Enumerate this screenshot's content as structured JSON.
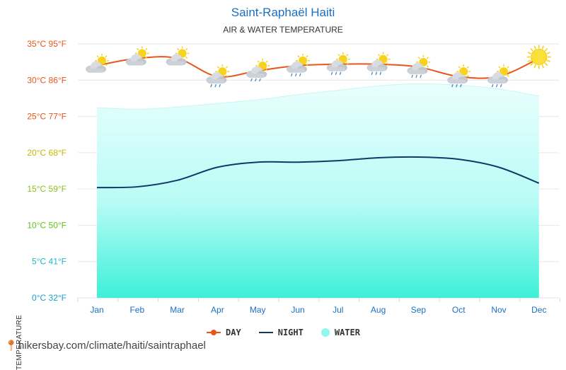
{
  "title": "Saint-Raphaël Haiti",
  "subtitle": "AIR & WATER TEMPERATURE",
  "source": "hikersbay.com/climate/haiti/saintraphael",
  "colors": {
    "day": "#e8561a",
    "night": "#0d3b66",
    "water": "#8ff7f0",
    "title": "#1b6fc0"
  },
  "legend": {
    "day": "DAY",
    "night": "NIGHT",
    "water": "WATER"
  },
  "chart_data": {
    "type": "line",
    "title": "Saint-Raphaël Haiti",
    "subtitle": "AIR & WATER TEMPERATURE",
    "ylabel": "TEMPERATURE",
    "xlabel": "",
    "categories": [
      "Jan",
      "Feb",
      "Mar",
      "Apr",
      "May",
      "Jun",
      "Jul",
      "Aug",
      "Sep",
      "Oct",
      "Nov",
      "Dec"
    ],
    "ylim": [
      0,
      35
    ],
    "yticks": [
      {
        "value": 35,
        "label": "35°C 95°F",
        "color": "#e8561a"
      },
      {
        "value": 30,
        "label": "30°C 86°F",
        "color": "#e8561a"
      },
      {
        "value": 25,
        "label": "25°C 77°F",
        "color": "#e8561a"
      },
      {
        "value": 20,
        "label": "20°C 68°F",
        "color": "#c8b800"
      },
      {
        "value": 15,
        "label": "15°C 59°F",
        "color": "#8fbf1a"
      },
      {
        "value": 10,
        "label": "10°C 50°F",
        "color": "#5fc21a"
      },
      {
        "value": 5,
        "label": "5°C 41°F",
        "color": "#1ab8c8"
      },
      {
        "value": 0,
        "label": "0°C 32°F",
        "color": "#1aa0c8"
      }
    ],
    "series": [
      {
        "name": "DAY",
        "type": "line",
        "values": [
          32.0,
          33.0,
          33.0,
          30.5,
          31.3,
          32.0,
          32.2,
          32.2,
          31.8,
          30.5,
          30.5,
          33.0
        ]
      },
      {
        "name": "NIGHT",
        "type": "line",
        "values": [
          15.2,
          15.3,
          16.2,
          18.0,
          18.7,
          18.7,
          18.9,
          19.3,
          19.4,
          19.1,
          18.0,
          15.8
        ]
      },
      {
        "name": "WATER",
        "type": "area",
        "values": [
          26.2,
          26.0,
          26.3,
          26.8,
          27.3,
          28.0,
          28.6,
          29.2,
          29.5,
          29.3,
          28.8,
          27.8
        ]
      }
    ],
    "weather_icons": [
      "partly-cloudy-icon",
      "partly-cloudy-icon",
      "partly-cloudy-icon",
      "rain-cloud-icon",
      "rain-cloud-icon",
      "rain-cloud-icon",
      "rain-cloud-icon",
      "rain-cloud-icon",
      "rain-cloud-icon",
      "rain-cloud-icon",
      "rain-cloud-icon",
      "sun-icon"
    ],
    "grid": true,
    "legend_position": "bottom-center"
  }
}
